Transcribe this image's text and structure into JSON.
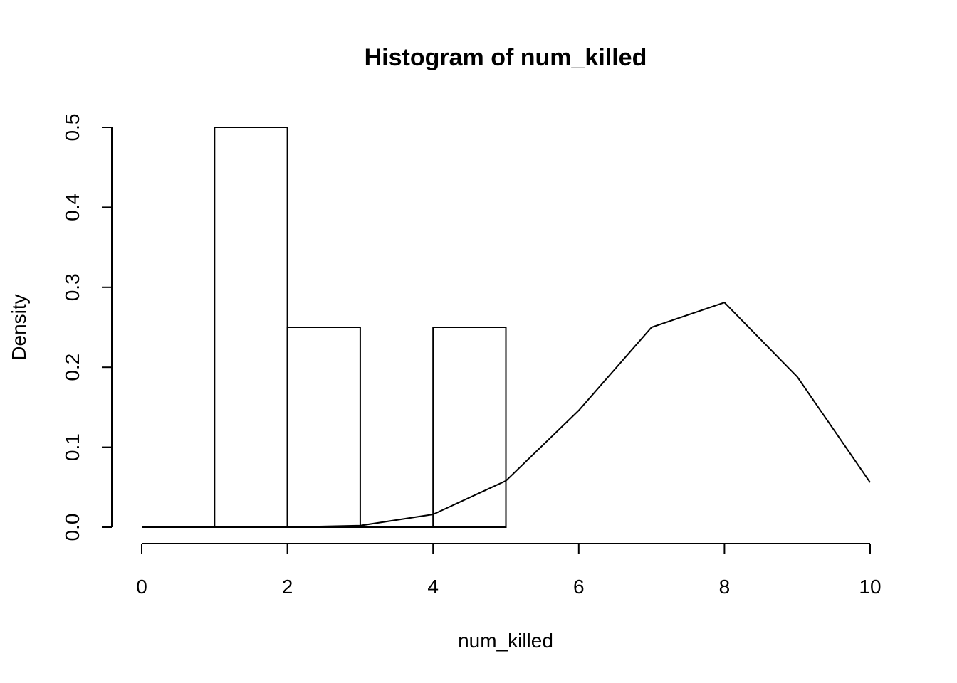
{
  "chart_data": {
    "type": "bar",
    "title": "Histogram of num_killed",
    "xlabel": "num_killed",
    "ylabel": "Density",
    "xlim": [
      0,
      10
    ],
    "ylim": [
      0,
      0.5
    ],
    "x_ticks": [
      0,
      2,
      4,
      6,
      8,
      10
    ],
    "y_ticks": [
      0.0,
      0.1,
      0.2,
      0.3,
      0.4,
      0.5
    ],
    "x_tick_labels": [
      "0",
      "2",
      "4",
      "6",
      "8",
      "10"
    ],
    "y_tick_labels": [
      "0.0",
      "0.1",
      "0.2",
      "0.3",
      "0.4",
      "0.5"
    ],
    "bins": [
      {
        "start": 0,
        "end": 1,
        "density": 0.0
      },
      {
        "start": 1,
        "end": 2,
        "density": 0.5
      },
      {
        "start": 2,
        "end": 3,
        "density": 0.25
      },
      {
        "start": 3,
        "end": 4,
        "density": 0.0
      },
      {
        "start": 4,
        "end": 5,
        "density": 0.25
      }
    ],
    "series": [
      {
        "type": "line",
        "x": [
          0,
          1,
          2,
          3,
          4,
          5,
          6,
          7,
          8,
          9,
          10
        ],
        "values": [
          0.0,
          0.0,
          0.0,
          0.002,
          0.016,
          0.058,
          0.146,
          0.25,
          0.281,
          0.188,
          0.056
        ]
      }
    ],
    "grid": false,
    "legend": "none"
  }
}
